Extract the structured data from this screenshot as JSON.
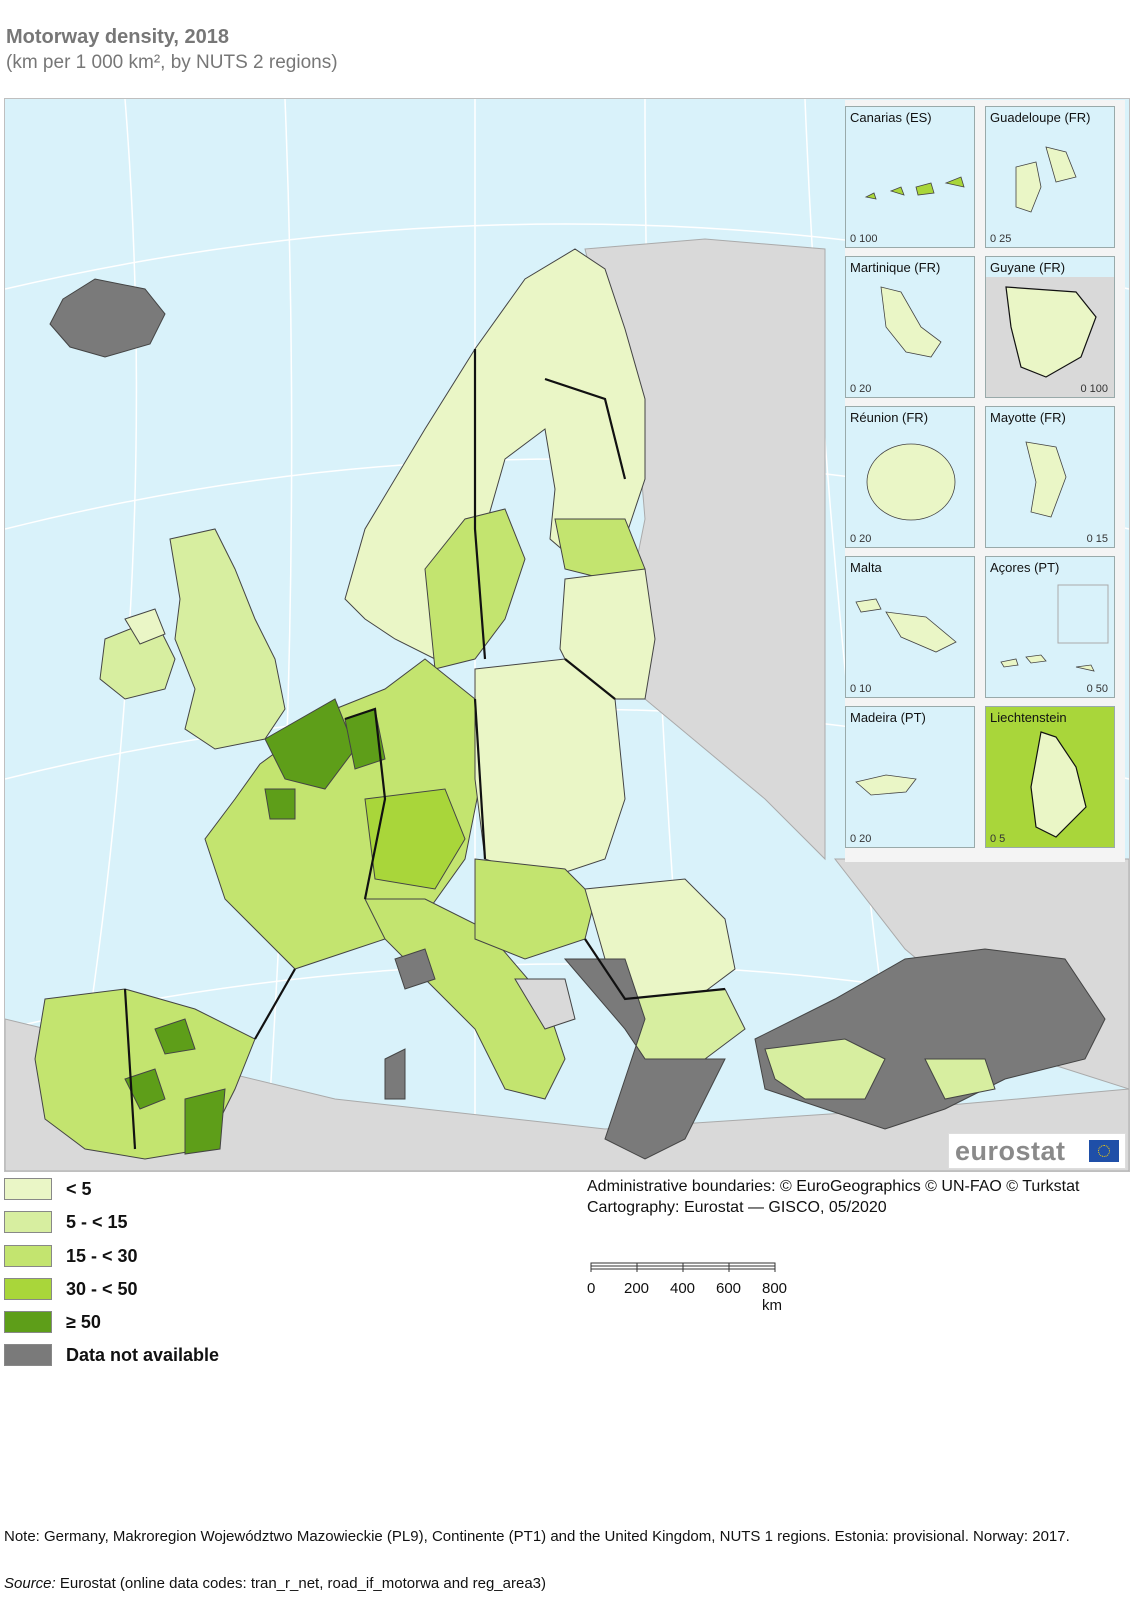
{
  "title": "Motorway density, 2018",
  "subtitle": "(km per 1 000 km², by NUTS 2 regions)",
  "legend": [
    {
      "label": "< 5",
      "color": "#eaf6c6"
    },
    {
      "label": "5 - < 15",
      "color": "#d7eea0"
    },
    {
      "label": "15 - < 30",
      "color": "#c3e46f"
    },
    {
      "label": "30 - < 50",
      "color": "#a9d63a"
    },
    {
      "label": "≥ 50",
      "color": "#5e9e19"
    },
    {
      "label": "Data not available",
      "color": "#7a7a7a"
    }
  ],
  "colors": {
    "sea": "#d9f2fa",
    "non_eu": "#d9d9d9",
    "border": "#111111",
    "graticule": "#ffffff"
  },
  "insets": [
    {
      "name": "Canarias (ES)",
      "scale": "0  100"
    },
    {
      "name": "Guadeloupe (FR)",
      "scale": "0  25"
    },
    {
      "name": "Martinique (FR)",
      "scale": "0  20"
    },
    {
      "name": "Guyane (FR)",
      "scale": "0  100"
    },
    {
      "name": "Réunion (FR)",
      "scale": "0  20"
    },
    {
      "name": "Mayotte (FR)",
      "scale": "0  15"
    },
    {
      "name": "Malta",
      "scale": "0  10"
    },
    {
      "name": "Açores (PT)",
      "scale": "0  50"
    },
    {
      "name": "Madeira (PT)",
      "scale": "0  20"
    },
    {
      "name": "Liechtenstein",
      "scale": "0  5"
    }
  ],
  "logo": "eurostat",
  "credits": {
    "line1": "Administrative boundaries: © EuroGeographics © UN-FAO © Turkstat",
    "line2": "Cartography: Eurostat — GISCO, 05/2020"
  },
  "scale": {
    "ticks": [
      "0",
      "200",
      "400",
      "600",
      "800 km"
    ]
  },
  "note": "Note: Germany, Makroregion Województwo Mazowieckie (PL9), Continente (PT1) and the United Kingdom, NUTS 1 regions. Estonia: provisional. Norway: 2017.",
  "source": {
    "label": "Source:",
    "text": "Eurostat (online data codes: tran_r_net, road_if_motorwa and reg_area3)"
  }
}
